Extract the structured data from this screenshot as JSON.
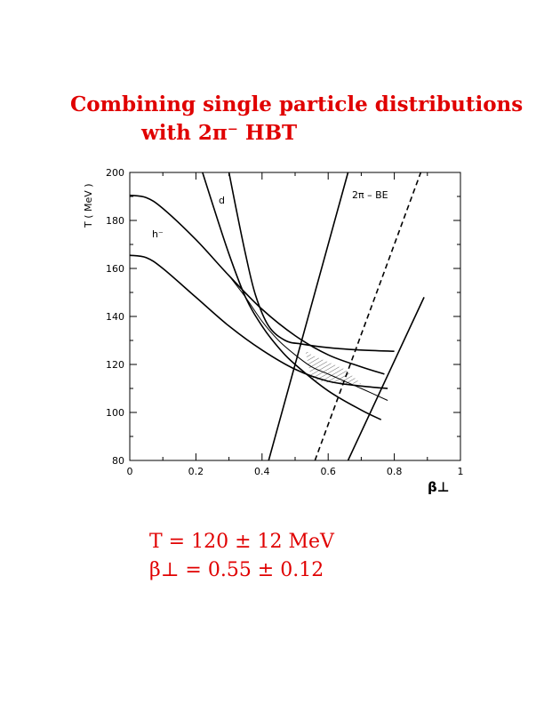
{
  "page": {
    "title_line1": "Combining single particle distributions",
    "title_line2": "with 2π⁻ HBT",
    "result_T": "T = 120 ± 12 MeV",
    "result_beta": "β⊥ = 0.55 ± 0.12",
    "accent_color": "#e00000"
  },
  "chart_data": {
    "type": "line",
    "title": "",
    "xlabel": "β⊥",
    "ylabel": "T ( MeV )",
    "xlim": [
      0,
      1
    ],
    "ylim": [
      80,
      200
    ],
    "x_ticks": [
      "0",
      "0.2",
      "0.4",
      "0.6",
      "0.8",
      "1"
    ],
    "y_ticks": [
      "80",
      "100",
      "120",
      "140",
      "160",
      "180",
      "200"
    ],
    "grid": false,
    "annotations": [
      "d",
      "h⁻",
      "2π – BE"
    ],
    "series": [
      {
        "name": "h⁻",
        "style": "solid",
        "x": [
          0,
          0.05,
          0.1,
          0.2,
          0.3,
          0.4,
          0.5,
          0.6,
          0.7,
          0.77
        ],
        "y": [
          190.5,
          189.5,
          185,
          172,
          157,
          143,
          132,
          124,
          119,
          116
        ]
      },
      {
        "name": "h⁻",
        "style": "solid",
        "x": [
          0,
          0.05,
          0.1,
          0.2,
          0.3,
          0.4,
          0.5,
          0.6,
          0.7,
          0.78
        ],
        "y": [
          165.5,
          164.5,
          160,
          148,
          136,
          126,
          118,
          113,
          111,
          110
        ]
      },
      {
        "name": "d",
        "style": "solid",
        "x": [
          0.22,
          0.25,
          0.3,
          0.35,
          0.4,
          0.45,
          0.5,
          0.6,
          0.7,
          0.76
        ],
        "y": [
          200,
          187,
          166,
          148,
          136,
          127,
          120,
          109,
          101,
          97
        ]
      },
      {
        "name": "d",
        "style": "solid",
        "x": [
          0.3,
          0.32,
          0.35,
          0.38,
          0.42,
          0.47,
          0.52,
          0.6,
          0.7,
          0.8
        ],
        "y": [
          200,
          186,
          166,
          149,
          136,
          130,
          128.5,
          127,
          126,
          125.5
        ]
      },
      {
        "name": "d",
        "style": "solid",
        "x": [
          0.3,
          0.35,
          0.4,
          0.45,
          0.5,
          0.55,
          0.6,
          0.65,
          0.7,
          0.78
        ],
        "y": [
          157,
          148,
          138,
          130,
          124,
          119,
          116,
          113,
          110,
          105
        ]
      },
      {
        "name": "2π – BE",
        "style": "solid",
        "x": [
          0.42,
          0.66
        ],
        "y": [
          80,
          200
        ]
      },
      {
        "name": "2π – BE",
        "style": "dashed",
        "x": [
          0.56,
          0.88
        ],
        "y": [
          80,
          200
        ]
      },
      {
        "name": "2π – BE",
        "style": "solid",
        "x": [
          0.66,
          0.89
        ],
        "y": [
          80,
          148
        ]
      }
    ],
    "shaded_region": {
      "description": "hatched allowed region",
      "x": [
        0.53,
        0.55,
        0.6,
        0.65,
        0.7,
        0.62,
        0.55,
        0.53
      ],
      "y": [
        126,
        124,
        121,
        118,
        112,
        112,
        113.5,
        126
      ]
    }
  }
}
